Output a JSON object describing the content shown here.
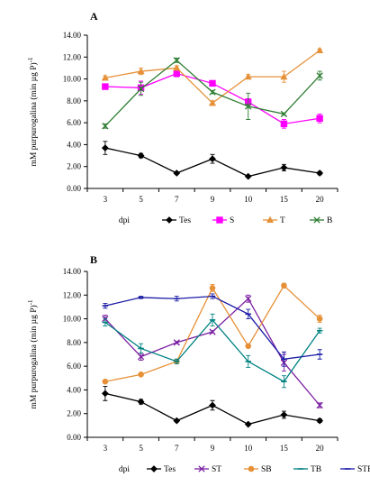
{
  "chart_data": [
    {
      "type": "line",
      "panel_label": "A",
      "ylabel": "mM purpurogalina (min µg P)",
      "ylabel_superscript": "-1",
      "xlabel": "dpi",
      "categories": [
        "3",
        "5",
        "7",
        "9",
        "10",
        "15",
        "20"
      ],
      "ylim": [
        0,
        14
      ],
      "yticks": [
        "0.00",
        "2.00",
        "4.00",
        "6.00",
        "8.00",
        "10.00",
        "12.00",
        "14.00"
      ],
      "legend_position": "bottom",
      "series": [
        {
          "name": "Tes",
          "color": "#000000",
          "marker": "diamond",
          "values": [
            3.7,
            3.0,
            1.4,
            2.7,
            1.1,
            1.9,
            1.4
          ],
          "errors": [
            0.6,
            0.2,
            0.1,
            0.4,
            0.1,
            0.3,
            0.15
          ]
        },
        {
          "name": "S",
          "color": "#ff00ff",
          "marker": "square",
          "values": [
            9.3,
            9.2,
            10.5,
            9.6,
            7.9,
            5.9,
            6.4
          ],
          "errors": [
            0.2,
            0.6,
            0.3,
            0.2,
            0.3,
            0.4,
            0.4
          ]
        },
        {
          "name": "T",
          "color": "#e69138",
          "marker": "triangle",
          "values": [
            10.1,
            10.7,
            11.0,
            7.8,
            10.2,
            10.2,
            12.6
          ],
          "errors": [
            0.2,
            0.3,
            0.2,
            0.2,
            0.2,
            0.5,
            0.15
          ]
        },
        {
          "name": "B",
          "color": "#2e7d32",
          "marker": "x",
          "values": [
            5.7,
            9.1,
            11.7,
            8.8,
            7.5,
            6.8,
            10.3
          ],
          "errors": [
            0.2,
            0.6,
            0.2,
            0.15,
            1.2,
            0.1,
            0.4
          ]
        }
      ]
    },
    {
      "type": "line",
      "panel_label": "B",
      "ylabel": "mM purpurogalina (min µg P)",
      "ylabel_superscript": "-1",
      "xlabel": "dpi",
      "categories": [
        "3",
        "5",
        "7",
        "9",
        "10",
        "15",
        "20"
      ],
      "ylim": [
        0,
        14
      ],
      "yticks": [
        "0.00",
        "2.00",
        "4.00",
        "6.00",
        "8.00",
        "10.00",
        "12.00",
        "14.00"
      ],
      "legend_position": "bottom",
      "series": [
        {
          "name": "Tes",
          "color": "#000000",
          "marker": "diamond",
          "values": [
            3.7,
            3.0,
            1.4,
            2.7,
            1.1,
            1.9,
            1.4
          ],
          "errors": [
            0.6,
            0.2,
            0.1,
            0.4,
            0.1,
            0.3,
            0.15
          ]
        },
        {
          "name": "ST",
          "color": "#7b1fa2",
          "marker": "x",
          "values": [
            10.0,
            6.8,
            8.0,
            8.9,
            11.7,
            6.3,
            2.7
          ],
          "errors": [
            0.3,
            0.3,
            0.1,
            0.1,
            0.3,
            0.7,
            0.2
          ]
        },
        {
          "name": "SB",
          "color": "#e69138",
          "marker": "circle",
          "values": [
            4.7,
            5.3,
            6.4,
            12.6,
            7.7,
            12.8,
            10.0
          ],
          "errors": [
            0.1,
            0.1,
            0.1,
            0.3,
            0.1,
            0.2,
            0.3
          ]
        },
        {
          "name": "TB",
          "color": "#008080",
          "marker": "dash",
          "values": [
            9.7,
            7.5,
            6.4,
            9.9,
            6.4,
            4.7,
            9.0
          ],
          "errors": [
            0.3,
            0.4,
            0.2,
            0.5,
            0.5,
            0.5,
            0.2
          ]
        },
        {
          "name": "STB",
          "color": "#1a1aa6",
          "marker": "dash",
          "values": [
            11.1,
            11.8,
            11.7,
            11.9,
            10.4,
            6.6,
            7.0
          ],
          "errors": [
            0.2,
            0.1,
            0.2,
            0.2,
            0.4,
            0.6,
            0.4
          ]
        }
      ]
    }
  ]
}
